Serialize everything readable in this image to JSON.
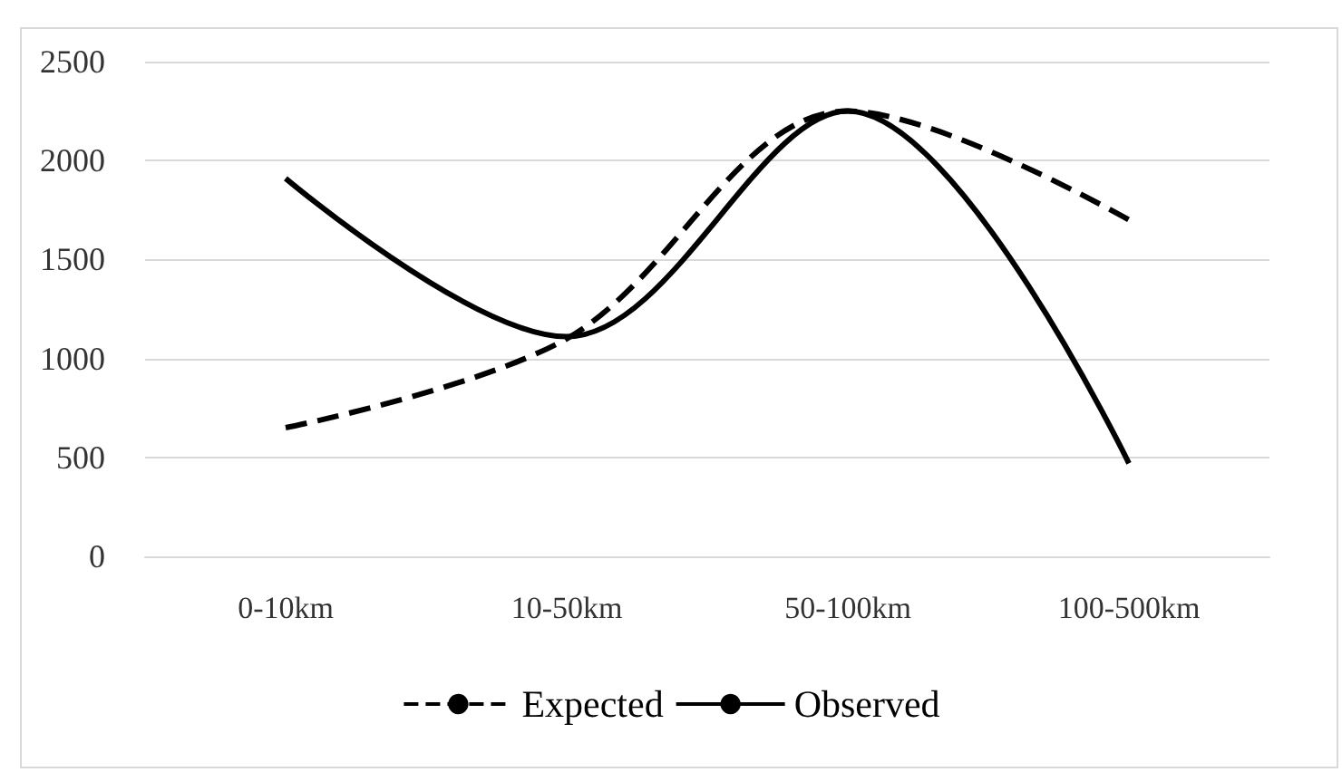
{
  "chart_data": {
    "type": "line",
    "categories": [
      "0-10km",
      "10-50km",
      "50-100km",
      "100-500km"
    ],
    "series": [
      {
        "name": "Expected",
        "color": "#000000",
        "line_style": "dashed",
        "values": [
          650,
          1100,
          2250,
          1700
        ]
      },
      {
        "name": "Observed",
        "color": "#000000",
        "line_style": "solid",
        "values": [
          1910,
          1110,
          2250,
          470
        ]
      }
    ],
    "ylim": [
      0,
      2500
    ],
    "yticks": [
      0,
      500,
      1000,
      1500,
      2000,
      2500
    ],
    "grid": "y",
    "legend": "bottom",
    "marker": "none"
  }
}
